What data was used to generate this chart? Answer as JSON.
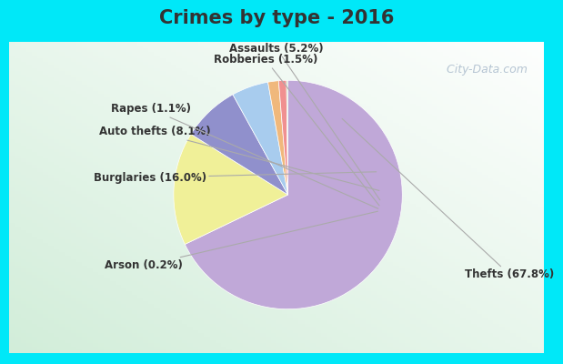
{
  "title": "Crimes by type - 2016",
  "labels": [
    "Thefts",
    "Burglaries",
    "Auto thefts",
    "Assaults",
    "Robberies",
    "Rapes",
    "Arson"
  ],
  "values": [
    67.8,
    16.0,
    8.1,
    5.2,
    1.5,
    1.1,
    0.2
  ],
  "colors": [
    "#c0a8d8",
    "#f0f098",
    "#9090cc",
    "#a8ccee",
    "#f0b87c",
    "#f09090",
    "#b8d8b8"
  ],
  "pct_labels": [
    "Thefts (67.8%)",
    "Burglaries (16.0%)",
    "Auto thefts (8.1%)",
    "Assaults (5.2%)",
    "Robberies (1.5%)",
    "Rapes (1.1%)",
    "Arson (0.2%)"
  ],
  "border_color": "#00e8f8",
  "title_fontsize": 15,
  "label_fontsize": 8.5,
  "watermark": " City-Data.com",
  "title_color": "#333333",
  "label_color": "#333333"
}
